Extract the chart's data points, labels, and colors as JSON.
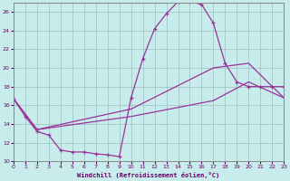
{
  "xlabel": "Windchill (Refroidissement éolien,°C)",
  "background_color": "#c8ecec",
  "grid_color": "#a0c8c8",
  "line_color": "#993399",
  "xlim": [
    0,
    23
  ],
  "ylim": [
    10,
    27
  ],
  "xticks": [
    0,
    1,
    2,
    3,
    4,
    5,
    6,
    7,
    8,
    9,
    10,
    11,
    12,
    13,
    14,
    15,
    16,
    17,
    18,
    19,
    20,
    21,
    22,
    23
  ],
  "yticks": [
    10,
    12,
    14,
    16,
    18,
    20,
    22,
    24,
    26
  ],
  "curve1_x": [
    0,
    1,
    2,
    3,
    4,
    5,
    6,
    7,
    8,
    9,
    10,
    11,
    12,
    13,
    14,
    15,
    16,
    17,
    18,
    19,
    20,
    21,
    22,
    23
  ],
  "curve1_y": [
    16.7,
    14.8,
    13.2,
    12.8,
    11.2,
    11.0,
    11.0,
    10.8,
    10.7,
    10.5,
    16.8,
    21.0,
    24.2,
    25.8,
    27.1,
    27.1,
    26.8,
    24.8,
    20.5,
    18.5,
    18.0,
    18.0,
    18.0,
    18.0
  ],
  "curve2_x": [
    0,
    2,
    10,
    17,
    20,
    23
  ],
  "curve2_y": [
    16.7,
    13.4,
    15.6,
    20.0,
    20.5,
    16.8
  ],
  "curve3_x": [
    0,
    2,
    10,
    17,
    20,
    23
  ],
  "curve3_y": [
    16.7,
    13.4,
    14.8,
    16.5,
    18.5,
    16.8
  ]
}
